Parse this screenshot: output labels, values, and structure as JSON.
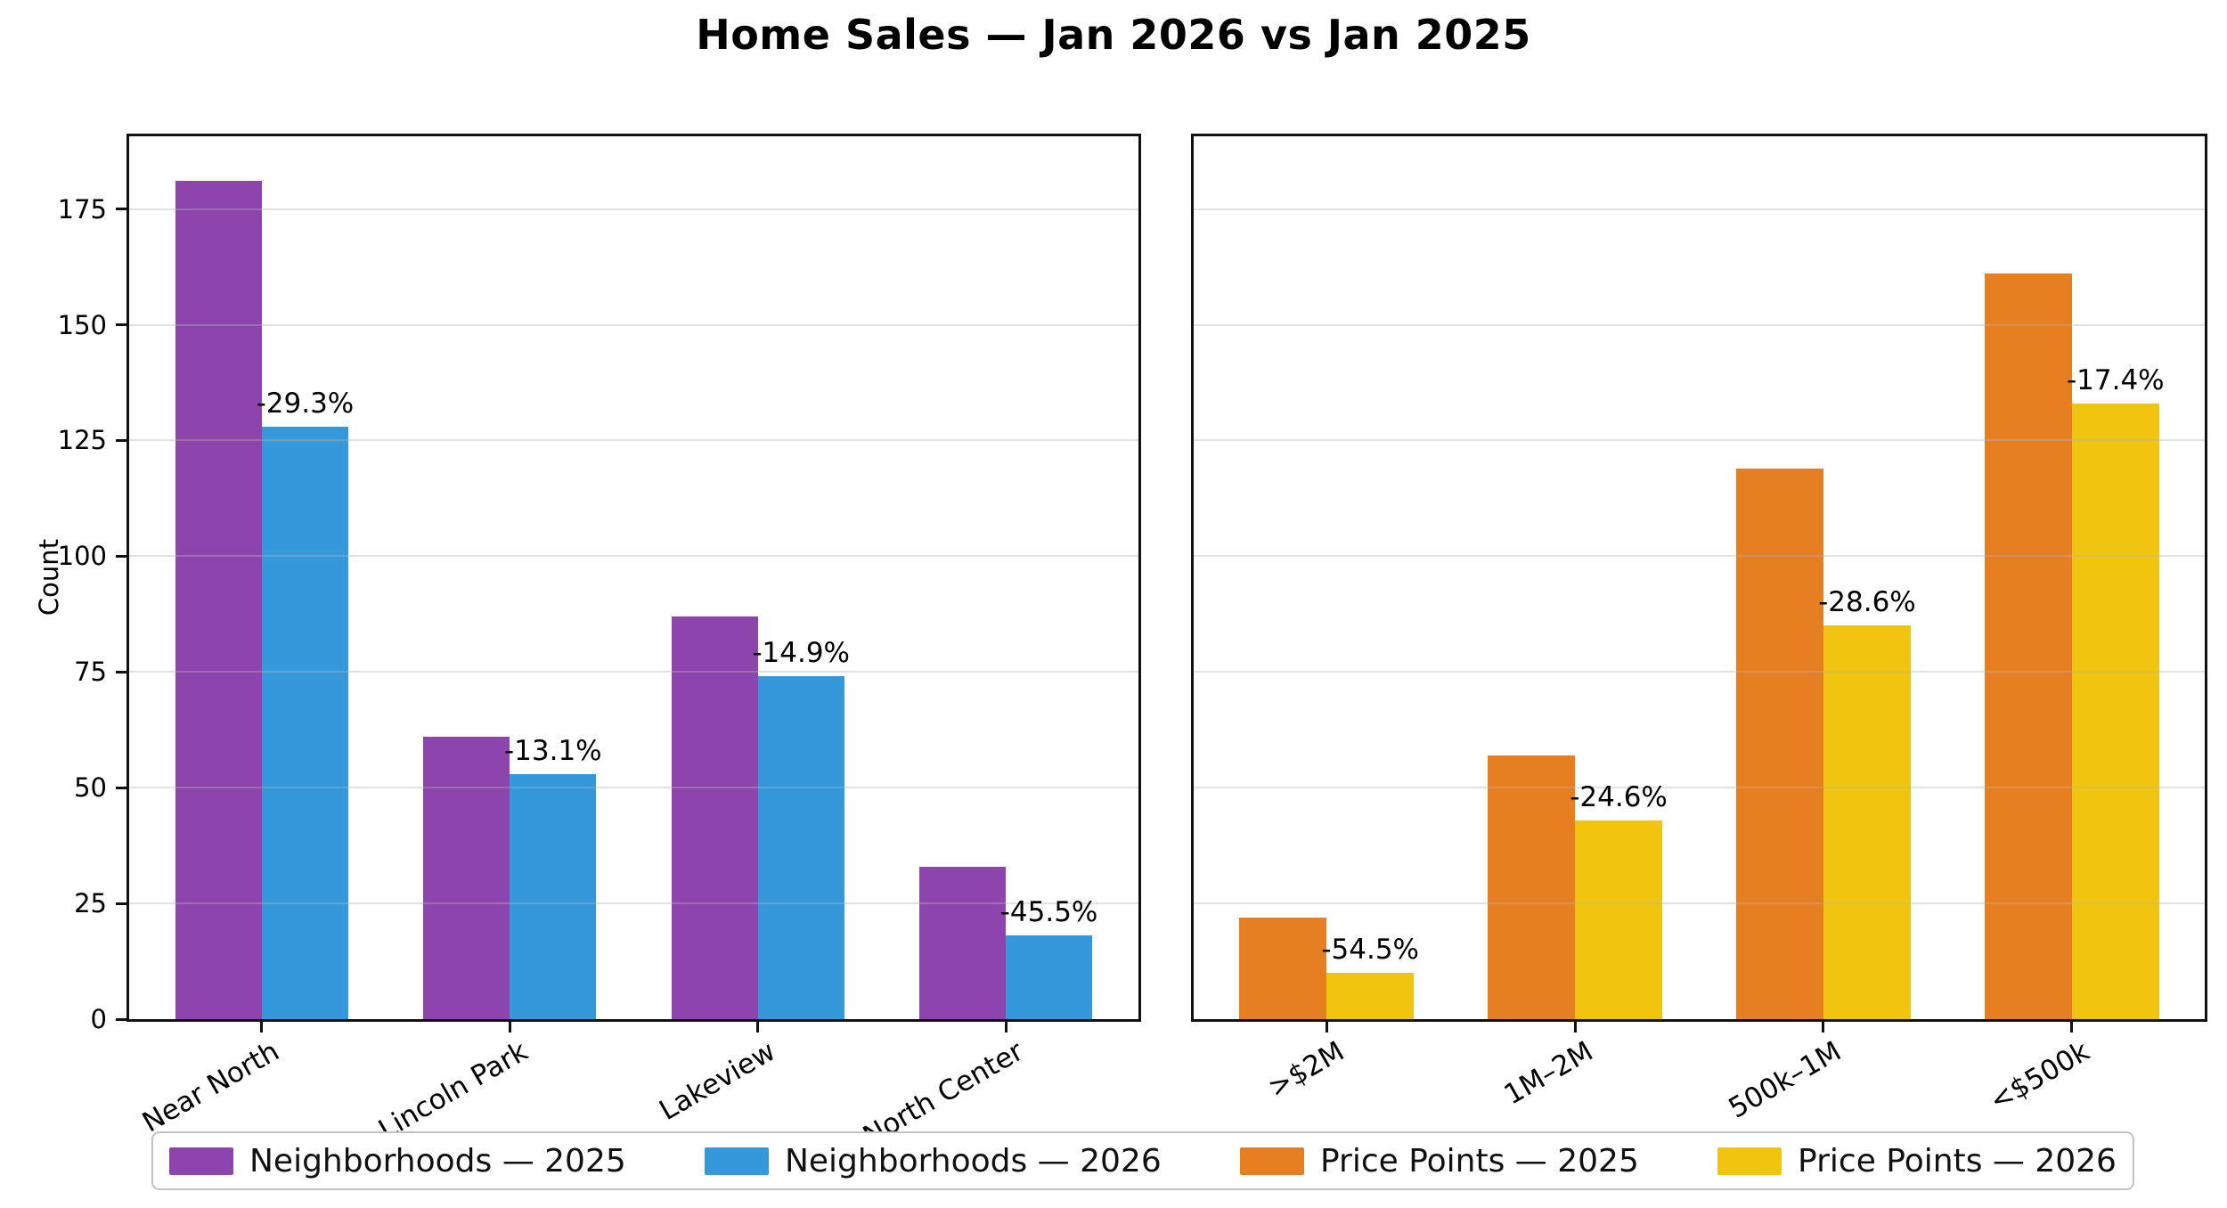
{
  "title": "Home Sales — Jan 2026 vs Jan 2025",
  "ylabel": "Count",
  "colors": {
    "purple_2025": "#8E44AD",
    "blue_2026": "#3498DB",
    "orange_2025": "#E67E22",
    "yellow_2026": "#F1C40F",
    "axis": "#111111",
    "grid": "#e6e6e6",
    "background": "#ffffff"
  },
  "legend": {
    "items": [
      {
        "label": "Neighborhoods — 2025",
        "color": "#8E44AD"
      },
      {
        "label": "Neighborhoods — 2026",
        "color": "#3498DB"
      },
      {
        "label": "Price Points — 2025",
        "color": "#E67E22"
      },
      {
        "label": "Price Points — 2026",
        "color": "#F1C40F"
      }
    ]
  },
  "chart_data": [
    {
      "type": "bar",
      "panel": "neighborhoods",
      "categories": [
        "Near North",
        "Lincoln Park",
        "Lakeview",
        "North Center"
      ],
      "series": [
        {
          "name": "Neighborhoods — 2025",
          "color": "#8E44AD",
          "values": [
            181,
            61,
            87,
            33
          ]
        },
        {
          "name": "Neighborhoods — 2026",
          "color": "#3498DB",
          "values": [
            128,
            53,
            74,
            18
          ]
        }
      ],
      "change_labels": [
        "-29.3%",
        "-13.1%",
        "-14.9%",
        "-45.5%"
      ],
      "ylabel": "Count",
      "ylim": [
        0,
        190.7
      ],
      "yticks": [
        0,
        25,
        50,
        75,
        100,
        125,
        150,
        175
      ],
      "show_ytick_labels": true,
      "grid": true,
      "legend_position": "bottom"
    },
    {
      "type": "bar",
      "panel": "price-points",
      "categories": [
        ">$2M",
        "1M–2M",
        "500k–1M",
        "<$500k"
      ],
      "series": [
        {
          "name": "Price Points — 2025",
          "color": "#E67E22",
          "values": [
            22,
            57,
            119,
            161
          ]
        },
        {
          "name": "Price Points — 2026",
          "color": "#F1C40F",
          "values": [
            10,
            43,
            85,
            133
          ]
        }
      ],
      "change_labels": [
        "-54.5%",
        "-24.6%",
        "-28.6%",
        "-17.4%"
      ],
      "ylabel": "",
      "ylim": [
        0,
        190.7
      ],
      "yticks": [
        0,
        25,
        50,
        75,
        100,
        125,
        150,
        175
      ],
      "show_ytick_labels": false,
      "grid": true,
      "legend_position": "bottom"
    }
  ]
}
